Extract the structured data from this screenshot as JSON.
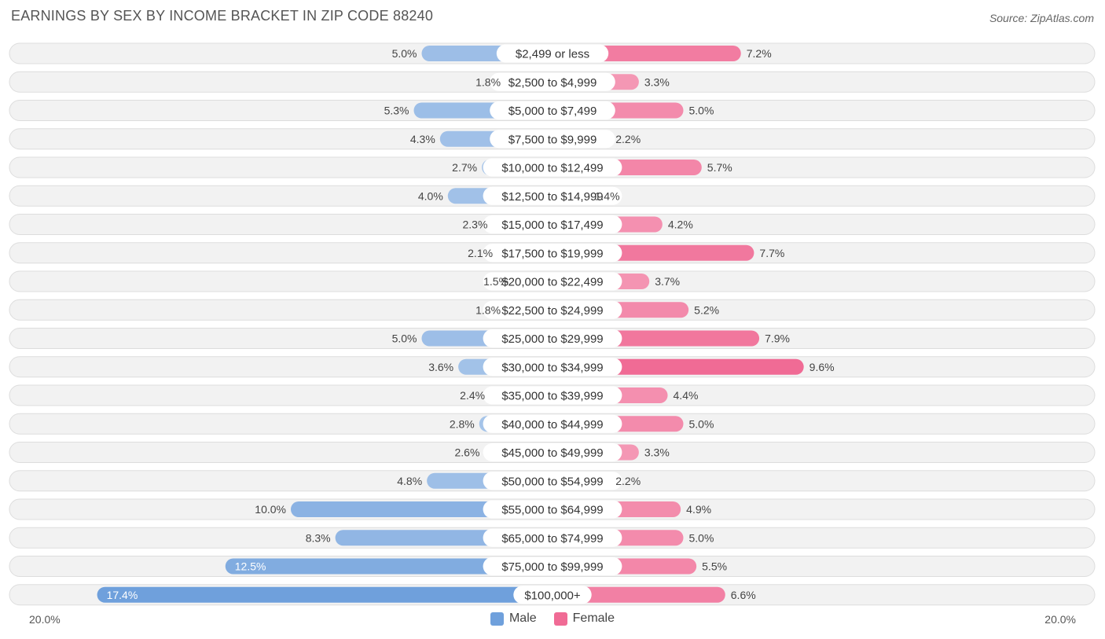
{
  "title": "EARNINGS BY SEX BY INCOME BRACKET IN ZIP CODE 88240",
  "source": "Source: ZipAtlas.com",
  "colors": {
    "male": "#6fa0dc",
    "female": "#f06b95",
    "track": "#f2f2f2",
    "track_border": "#dddddd"
  },
  "legend": {
    "male_label": "Male",
    "female_label": "Female"
  },
  "chart_data": {
    "type": "bar",
    "orientation": "horizontal-diverging",
    "title": "EARNINGS BY SEX BY INCOME BRACKET IN ZIP CODE 88240",
    "xlim": [
      -20,
      20
    ],
    "axis_min_label": "20.0%",
    "axis_max_label": "20.0%",
    "categories": [
      "$2,499 or less",
      "$2,500 to $4,999",
      "$5,000 to $7,499",
      "$7,500 to $9,999",
      "$10,000 to $12,499",
      "$12,500 to $14,999",
      "$15,000 to $17,499",
      "$17,500 to $19,999",
      "$20,000 to $22,499",
      "$22,500 to $24,999",
      "$25,000 to $29,999",
      "$30,000 to $34,999",
      "$35,000 to $39,999",
      "$40,000 to $44,999",
      "$45,000 to $49,999",
      "$50,000 to $54,999",
      "$55,000 to $64,999",
      "$65,000 to $74,999",
      "$75,000 to $99,999",
      "$100,000+"
    ],
    "series": [
      {
        "name": "Male",
        "values": [
          5.0,
          1.8,
          5.3,
          4.3,
          2.7,
          4.0,
          2.3,
          2.1,
          1.5,
          1.8,
          5.0,
          3.6,
          2.4,
          2.8,
          2.6,
          4.8,
          10.0,
          8.3,
          12.5,
          17.4
        ],
        "labels": [
          "5.0%",
          "1.8%",
          "5.3%",
          "4.3%",
          "2.7%",
          "4.0%",
          "2.3%",
          "2.1%",
          "1.5%",
          "1.8%",
          "5.0%",
          "3.6%",
          "2.4%",
          "2.8%",
          "2.6%",
          "4.8%",
          "10.0%",
          "8.3%",
          "12.5%",
          "17.4%"
        ]
      },
      {
        "name": "Female",
        "values": [
          7.2,
          3.3,
          5.0,
          2.2,
          5.7,
          1.4,
          4.2,
          7.7,
          3.7,
          5.2,
          7.9,
          9.6,
          4.4,
          5.0,
          3.3,
          2.2,
          4.9,
          5.0,
          5.5,
          6.6
        ],
        "labels": [
          "7.2%",
          "3.3%",
          "5.0%",
          "2.2%",
          "5.7%",
          "1.4%",
          "4.2%",
          "7.7%",
          "3.7%",
          "5.2%",
          "7.9%",
          "9.6%",
          "4.4%",
          "5.0%",
          "3.3%",
          "2.2%",
          "4.9%",
          "5.0%",
          "5.5%",
          "6.6%"
        ]
      }
    ]
  }
}
